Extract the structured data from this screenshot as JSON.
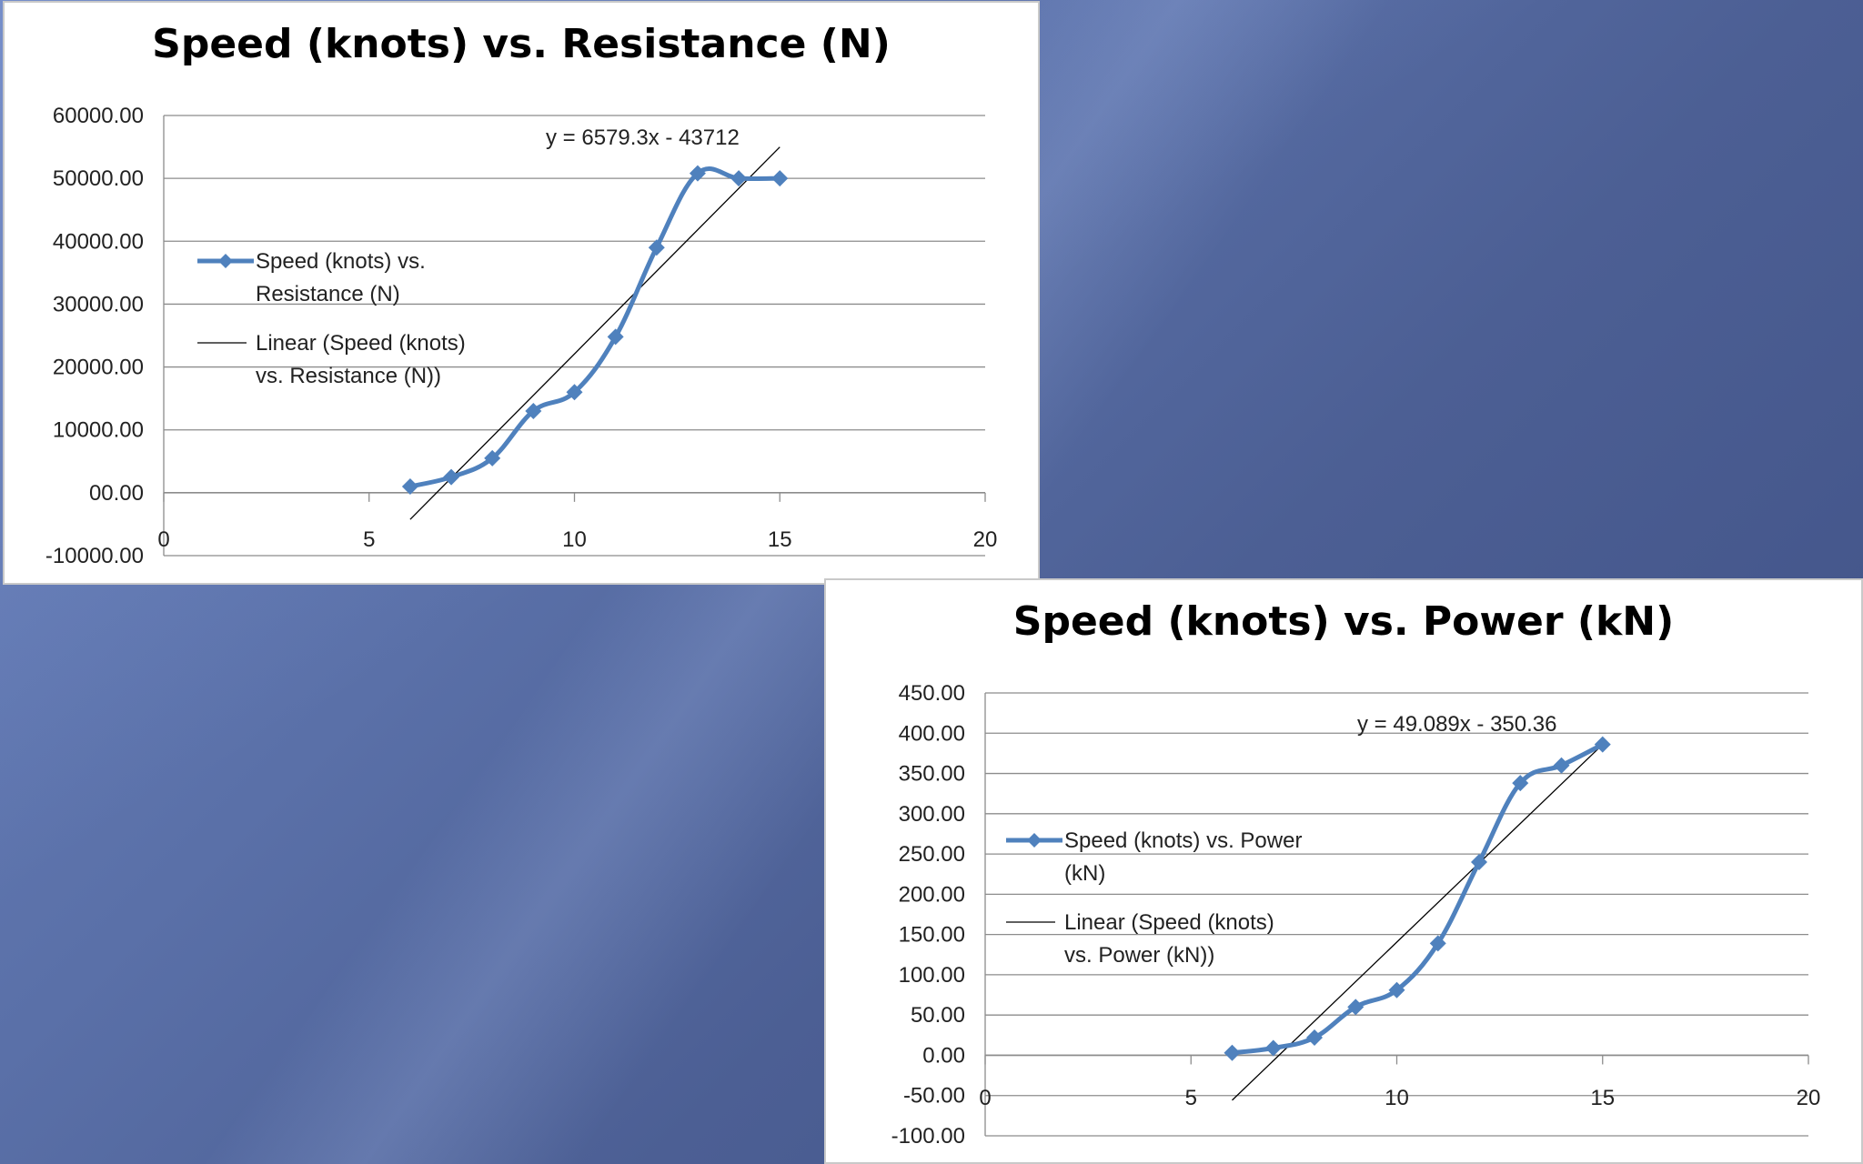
{
  "chart_data": [
    {
      "type": "line",
      "title": "Speed (knots) vs. Resistance (N)",
      "xlim": [
        0,
        20
      ],
      "ylim": [
        -10000,
        60000
      ],
      "xticks": [
        "0",
        "5",
        "10",
        "15",
        "20"
      ],
      "yticks": [
        "60000.00",
        "50000.00",
        "40000.00",
        "30000.00",
        "20000.00",
        "10000.00",
        "00.00",
        "-10000.00"
      ],
      "grid": true,
      "legend_position": "left",
      "colors": {
        "series": "#4f81bd",
        "trend": "#000000"
      },
      "series": [
        {
          "name": "Speed (knots) vs. Resistance (N)",
          "legend_lines": [
            "Speed (knots) vs.",
            "Resistance (N)"
          ],
          "x": [
            6,
            7,
            8,
            9,
            10,
            11,
            12,
            13,
            14,
            15
          ],
          "y": [
            1000,
            2500,
            5500,
            13000,
            16000,
            24800,
            39000,
            50800,
            50000,
            50000
          ]
        }
      ],
      "trendline": {
        "legend_lines": [
          "Linear (Speed (knots)",
          "vs. Resistance (N))"
        ],
        "equation": "y = 6579.3x - 43712",
        "slope": 6579.3,
        "intercept": -43712,
        "x_range": [
          6,
          15
        ]
      }
    },
    {
      "type": "line",
      "title": "Speed (knots) vs. Power (kN)",
      "xlim": [
        0,
        20
      ],
      "ylim": [
        -100,
        450
      ],
      "xticks": [
        "0",
        "5",
        "10",
        "15",
        "20"
      ],
      "yticks": [
        "450.00",
        "400.00",
        "350.00",
        "300.00",
        "250.00",
        "200.00",
        "150.00",
        "100.00",
        "50.00",
        "0.00",
        "-50.00",
        "-100.00"
      ],
      "grid": true,
      "legend_position": "left",
      "colors": {
        "series": "#4f81bd",
        "trend": "#000000"
      },
      "series": [
        {
          "name": "Speed (knots) vs. Power (kN)",
          "legend_lines": [
            "Speed (knots) vs. Power",
            "(kN)"
          ],
          "x": [
            6,
            7,
            8,
            9,
            10,
            11,
            12,
            13,
            14,
            15
          ],
          "y": [
            3,
            9,
            22,
            60,
            81,
            139,
            240,
            338,
            360,
            386
          ]
        }
      ],
      "trendline": {
        "legend_lines": [
          "Linear (Speed (knots)",
          "vs. Power (kN))"
        ],
        "equation": "y = 49.089x - 350.36",
        "slope": 49.089,
        "intercept": -350.36,
        "x_range": [
          6,
          15
        ]
      }
    }
  ]
}
